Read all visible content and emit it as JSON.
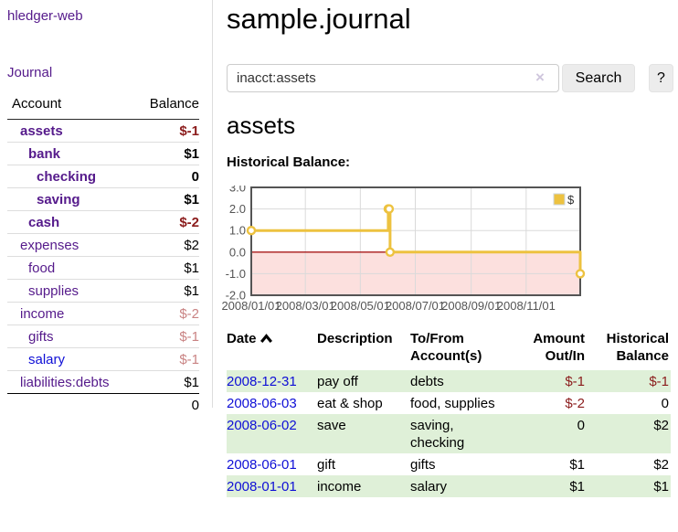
{
  "sidebar": {
    "brand": "hledger-web",
    "journal_label": "Journal",
    "accounts_table": {
      "headers": [
        "Account",
        "Balance"
      ],
      "rows": [
        {
          "name": "assets",
          "balance": "$-1",
          "level": 1,
          "bold": true,
          "balance_tone": "neg"
        },
        {
          "name": "bank",
          "balance": "$1",
          "level": 2,
          "bold": true,
          "balance_tone": "normal"
        },
        {
          "name": "checking",
          "balance": "0",
          "level": 3,
          "bold": true,
          "balance_tone": "normal"
        },
        {
          "name": "saving",
          "balance": "$1",
          "level": 3,
          "bold": true,
          "balance_tone": "normal"
        },
        {
          "name": "cash",
          "balance": "$-2",
          "level": 2,
          "bold": true,
          "balance_tone": "neg"
        },
        {
          "name": "expenses",
          "balance": "$2",
          "level": 1,
          "bold": false,
          "balance_tone": "normal"
        },
        {
          "name": "food",
          "balance": "$1",
          "level": 2,
          "bold": false,
          "balance_tone": "normal"
        },
        {
          "name": "supplies",
          "balance": "$1",
          "level": 2,
          "bold": false,
          "balance_tone": "normal"
        },
        {
          "name": "income",
          "balance": "$-2",
          "level": 1,
          "bold": false,
          "balance_tone": "negdim"
        },
        {
          "name": "gifts",
          "balance": "$-1",
          "level": 2,
          "bold": false,
          "balance_tone": "negdim"
        },
        {
          "name": "salary",
          "balance": "$-1",
          "level": 2,
          "bold": false,
          "balance_tone": "negdim",
          "link_tone": "blue"
        },
        {
          "name": "liabilities:debts",
          "balance": "$1",
          "level": 1,
          "bold": false,
          "balance_tone": "normal"
        }
      ],
      "total": "0"
    }
  },
  "header": {
    "title": "sample.journal"
  },
  "search": {
    "value": "inacct:assets",
    "clear_glyph": "×",
    "button_label": "Search",
    "help_label": "?"
  },
  "account_page": {
    "heading": "assets",
    "chart_label": "Historical Balance:"
  },
  "chart_data": {
    "type": "line",
    "step": true,
    "title": "Historical Balance",
    "legend": {
      "label": "$",
      "position": "top-right"
    },
    "ylim": [
      -2,
      3
    ],
    "ytick_labels": [
      "3.0",
      "2.0",
      "1.0",
      "0.0",
      "-1.0",
      "-2.0"
    ],
    "ytick_values": [
      3,
      2,
      1,
      0,
      -1,
      -2
    ],
    "x_span_days": 365,
    "xticks": [
      {
        "label": "2008/01/01",
        "day": 0
      },
      {
        "label": "2008/03/01",
        "day": 60
      },
      {
        "label": "2008/05/01",
        "day": 121
      },
      {
        "label": "2008/07/01",
        "day": 182
      },
      {
        "label": "2008/09/01",
        "day": 244
      },
      {
        "label": "2008/11/01",
        "day": 305
      }
    ],
    "series": [
      {
        "name": "$",
        "points": [
          {
            "date": "2008-01-01",
            "day": 0,
            "value": 1
          },
          {
            "date": "2008-06-01",
            "day": 152,
            "value": 2
          },
          {
            "date": "2008-06-02",
            "day": 153,
            "value": 2
          },
          {
            "date": "2008-06-03",
            "day": 154,
            "value": 0
          },
          {
            "date": "2008-12-31",
            "day": 365,
            "value": -1
          }
        ]
      }
    ],
    "negative_region_shaded": true
  },
  "register_table": {
    "headers": {
      "date": "Date",
      "description": "Description",
      "tofrom": "To/From Account(s)",
      "amount": "Amount Out/In",
      "balance": "Historical Balance"
    },
    "rows": [
      {
        "date": "2008-12-31",
        "description": "pay off",
        "tofrom": "debts",
        "amount": "$-1",
        "amount_tone": "neg",
        "balance": "$-1",
        "balance_tone": "neg"
      },
      {
        "date": "2008-06-03",
        "description": "eat & shop",
        "tofrom": "food, supplies",
        "amount": "$-2",
        "amount_tone": "neg",
        "balance": "0",
        "balance_tone": "normal"
      },
      {
        "date": "2008-06-02",
        "description": "save",
        "tofrom": "saving, checking",
        "amount": "0",
        "amount_tone": "normal",
        "balance": "$2",
        "balance_tone": "normal"
      },
      {
        "date": "2008-06-01",
        "description": "gift",
        "tofrom": "gifts",
        "amount": "$1",
        "amount_tone": "normal",
        "balance": "$2",
        "balance_tone": "normal"
      },
      {
        "date": "2008-01-01",
        "description": "income",
        "tofrom": "salary",
        "amount": "$1",
        "amount_tone": "normal",
        "balance": "$1",
        "balance_tone": "normal"
      }
    ]
  },
  "colors": {
    "link_purple": "#551a8b",
    "link_blue": "#0f0fd6",
    "negative": "#8b1c1c",
    "negative_dim": "#c98383",
    "row_stripe": "#dff0d8",
    "series_yellow": "#edc240",
    "negative_fill": "#fce0de",
    "zero_line": "#a81717",
    "grid": "#dadada",
    "chart_border": "#545454",
    "axis_text": "#545454"
  }
}
